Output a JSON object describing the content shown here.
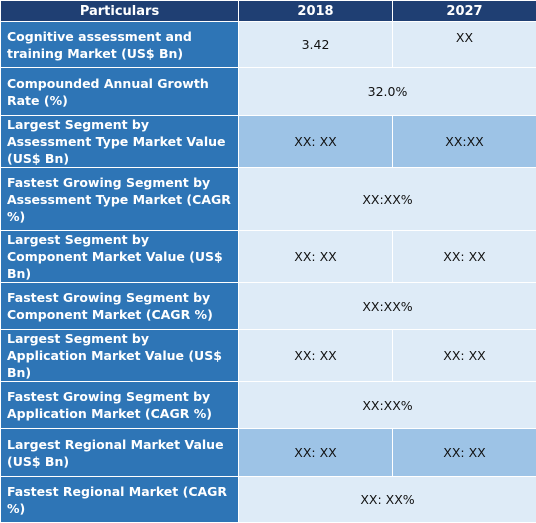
{
  "header": {
    "col0": "Particulars",
    "col1": "2018",
    "col2": "2027"
  },
  "rows": [
    {
      "label": "Cognitive assessment and training Market (US$ Bn)",
      "v2018": "3.42",
      "v2027": "XX"
    },
    {
      "label": "Compounded Annual Growth Rate (%)",
      "merged": "32.0%"
    },
    {
      "label": "Largest Segment by Assessment Type Market Value (US$ Bn)",
      "v2018": "XX: XX",
      "v2027": "XX:XX"
    },
    {
      "label": "Fastest Growing Segment by Assessment Type Market (CAGR %)",
      "merged": "XX:XX%"
    },
    {
      "label": "Largest Segment by Component Market Value (US$ Bn)",
      "v2018": "XX: XX",
      "v2027": "XX: XX"
    },
    {
      "label": "Fastest Growing Segment by Component Market (CAGR %)",
      "merged": "XX:XX%"
    },
    {
      "label": "Largest Segment by Application Market Value (US$ Bn)",
      "v2018": "XX: XX",
      "v2027": "XX: XX"
    },
    {
      "label": "Fastest Growing Segment by Application Market (CAGR %)",
      "merged": "XX:XX%"
    },
    {
      "label": "Largest Regional Market Value (US$ Bn)",
      "v2018": "XX: XX",
      "v2027": "XX: XX"
    },
    {
      "label": "Fastest Regional Market (CAGR %)",
      "merged": "XX: XX%"
    }
  ],
  "colors": {
    "header_bg": "#1f3f73",
    "label_bg": "#2e75b6",
    "value_dark": "#9dc3e6",
    "value_light": "#deebf7"
  }
}
